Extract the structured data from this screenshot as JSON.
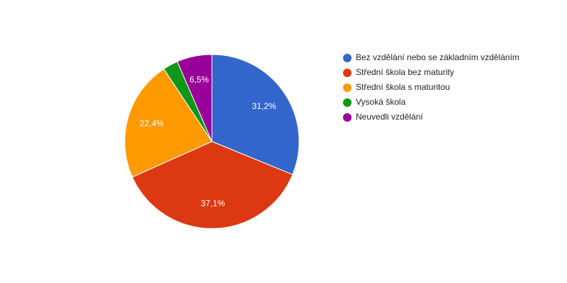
{
  "chart_data": {
    "type": "pie",
    "categories": [
      "Bez vzdělání nebo se základním vzděláním",
      "Střední škola bez maturity",
      "Střední škola s maturitou",
      "Vysoká škola",
      "Neuvedli vzdělání"
    ],
    "values": [
      31.2,
      37.1,
      22.4,
      2.8,
      6.5
    ],
    "value_labels": [
      "31,2%",
      "37,1%",
      "22,4%",
      null,
      "6,5%"
    ],
    "colors": [
      "#3366cc",
      "#dc3912",
      "#ff9900",
      "#109618",
      "#990099"
    ],
    "legend": "right"
  }
}
